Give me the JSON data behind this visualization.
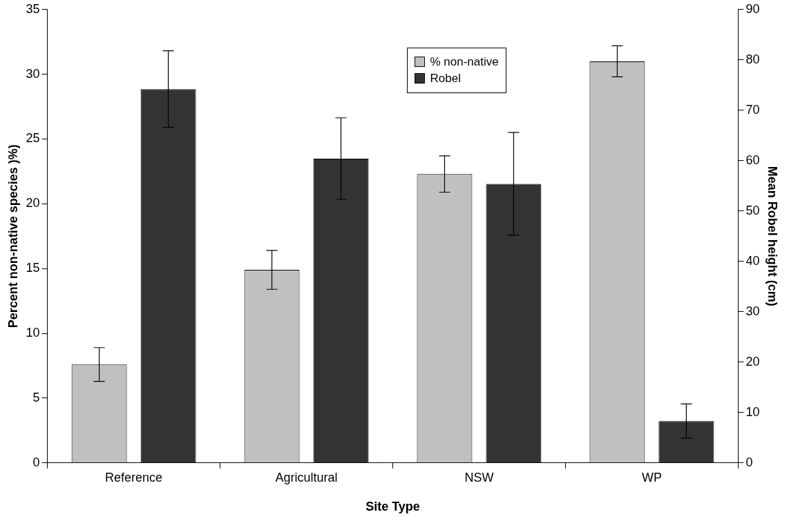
{
  "chart_data": {
    "type": "bar",
    "xlabel": "Site Type",
    "ylabel": "Percent non-native species )%)",
    "y2label": "Mean Robel height (cm)",
    "categories": [
      "Reference",
      "Agricultural",
      "NSW",
      "WP"
    ],
    "series": [
      {
        "name": "% non-native",
        "color": "#c0c0c0",
        "values": [
          7.6,
          14.9,
          22.3,
          31.0
        ],
        "errors": [
          1.3,
          1.5,
          1.4,
          1.2
        ]
      },
      {
        "name": "Robel",
        "color": "#333333",
        "axis": "y2",
        "values": [
          74.2,
          60.4,
          55.4,
          8.3
        ],
        "errors": [
          7.6,
          8.1,
          10.2,
          3.4
        ]
      }
    ],
    "ylim": [
      0,
      35
    ],
    "yticks": [
      0,
      5,
      10,
      15,
      20,
      25,
      30,
      35
    ],
    "y2lim": [
      0,
      90
    ],
    "y2ticks": [
      0,
      10,
      20,
      30,
      40,
      50,
      60,
      70,
      80,
      90
    ],
    "grid": false,
    "legend": "top center"
  }
}
